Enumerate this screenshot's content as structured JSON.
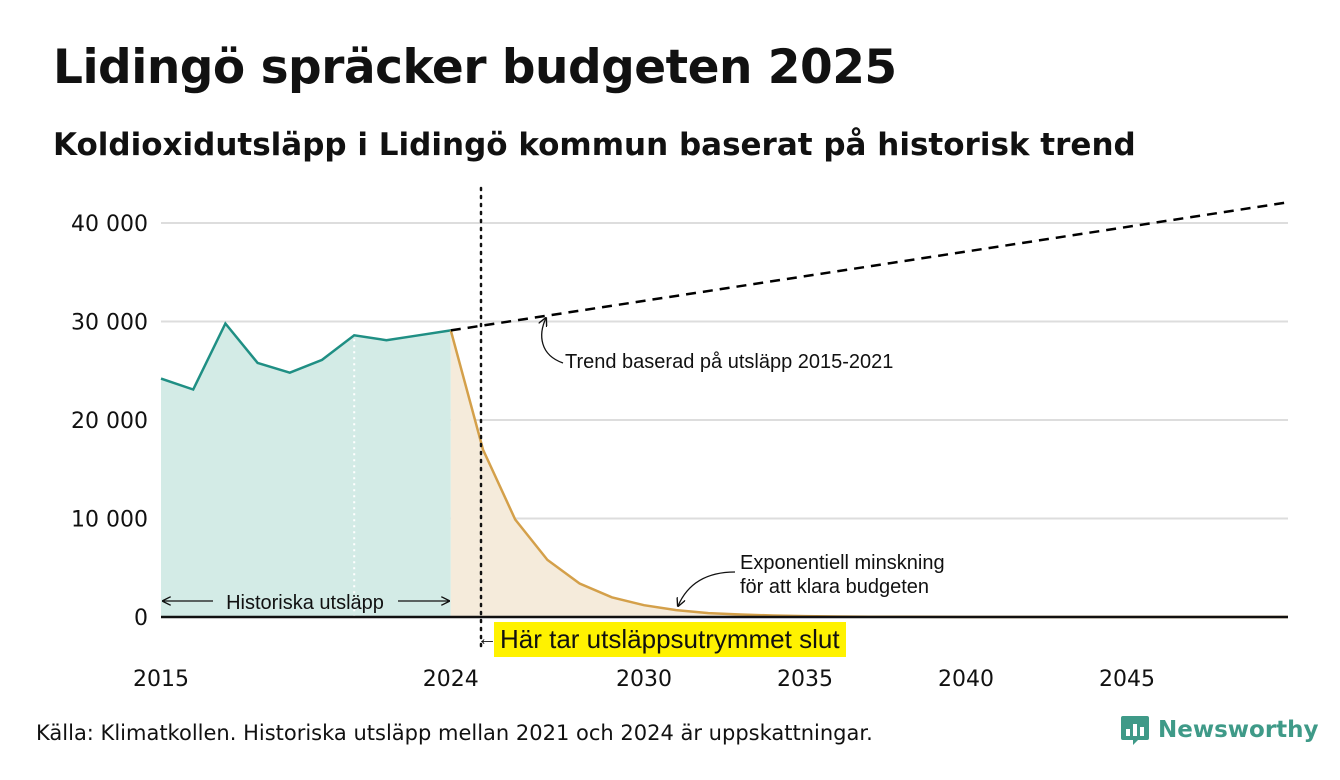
{
  "header": {
    "title": "Lidingö spräcker budgeten 2025",
    "subtitle": "Koldioxidutsläpp i Lidingö kommun baserat på historisk trend"
  },
  "footer": {
    "source": "Källa: Klimatkollen. Historiska utsläpp mellan 2021 och 2024 är uppskattningar.",
    "brand": "Newsworthy",
    "brand_icon": "newsworthy-logo-icon",
    "brand_color": "#3f9a88"
  },
  "annotations": {
    "historical_range": "Historiska utsläpp",
    "trend_line1": "Trend baserad på utsläpp 2015-2021",
    "decline_line1": "Exponentiell minskning",
    "decline_line2": "för att klara budgeten",
    "budget_end": "Här tar utsläppsutrymmet slut",
    "budget_end_arrow": "←"
  },
  "chart_data": {
    "type": "area",
    "title": "Lidingö spräcker budgeten 2025",
    "subtitle": "Koldioxidutsläpp i Lidingö kommun baserat på historisk trend",
    "xlabel": "",
    "ylabel": "",
    "xlim": [
      2015,
      2050
    ],
    "ylim": [
      0,
      40000
    ],
    "x_ticks": [
      2015,
      2024,
      2030,
      2035,
      2040,
      2045
    ],
    "x_tick_labels": [
      "2015",
      "2024",
      "2030",
      "2035",
      "2040",
      "2045"
    ],
    "y_ticks": [
      0,
      10000,
      20000,
      30000,
      40000
    ],
    "y_tick_labels": [
      "0",
      "10 000",
      "20 000",
      "30 000",
      "40 000"
    ],
    "grid": true,
    "budget_end_year": 2025.0,
    "colors": {
      "historical_line": "#1f8f84",
      "historical_fill": "#d3ebe6",
      "decline_line": "#d4a04a",
      "decline_fill": "#f5ebdb",
      "trend_line": "#000000",
      "grid": "#dddddd",
      "highlight": "#fff200"
    },
    "series": [
      {
        "role": "historical",
        "x": [
          2015,
          2016,
          2017,
          2018,
          2019,
          2020,
          2021,
          2022,
          2023,
          2024
        ],
        "values": [
          24200,
          23100,
          29800,
          25800,
          24800,
          26100,
          28600,
          28100,
          28600,
          29100
        ]
      },
      {
        "role": "decline",
        "x": [
          2024,
          2025,
          2026,
          2027,
          2028,
          2029,
          2030,
          2031,
          2032,
          2033,
          2034,
          2035,
          2036,
          2037,
          2038,
          2039,
          2040,
          2041,
          2042,
          2043,
          2044,
          2045,
          2046,
          2047,
          2048,
          2049,
          2050
        ],
        "values": [
          29100,
          17000,
          9900,
          5800,
          3400,
          2000,
          1200,
          700,
          400,
          250,
          150,
          90,
          50,
          30,
          20,
          10,
          5,
          3,
          2,
          1,
          0,
          0,
          0,
          0,
          0,
          0,
          0
        ]
      },
      {
        "role": "trend",
        "x": [
          2024,
          2050
        ],
        "values": [
          29100,
          42100
        ]
      }
    ]
  }
}
